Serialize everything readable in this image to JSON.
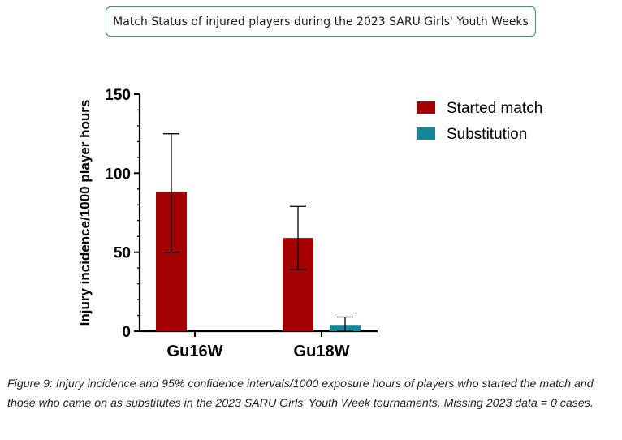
{
  "header": {
    "title": "Match Status of injured players during the 2023 SARU Girls' Youth Weeks"
  },
  "chart_data": {
    "type": "bar",
    "title": "Match Status of injured players during the 2023 SARU Girls' Youth Weeks",
    "xlabel": "",
    "ylabel": "Injury incidence/1000 player hours",
    "ylim": [
      0,
      150
    ],
    "yticks": [
      0,
      50,
      100,
      150
    ],
    "categories": [
      "Gu16W",
      "Gu18W"
    ],
    "series": [
      {
        "name": "Started match",
        "color": "#a50000",
        "values": [
          88,
          59
        ],
        "ci_lower": [
          50,
          39
        ],
        "ci_upper": [
          125,
          79
        ]
      },
      {
        "name": "Substitution",
        "color": "#16879a",
        "values": [
          0,
          4
        ],
        "ci_lower": [
          0,
          0
        ],
        "ci_upper": [
          0,
          9
        ]
      }
    ],
    "legend_position": "top-right",
    "grid": false
  },
  "caption": {
    "text": "Figure 9: Injury incidence and 95% confidence intervals/1000 exposure hours of players who started the match and those who came on as substitutes in the 2023 SARU Girls' Youth Week tournaments. Missing 2023 data = 0 cases."
  }
}
